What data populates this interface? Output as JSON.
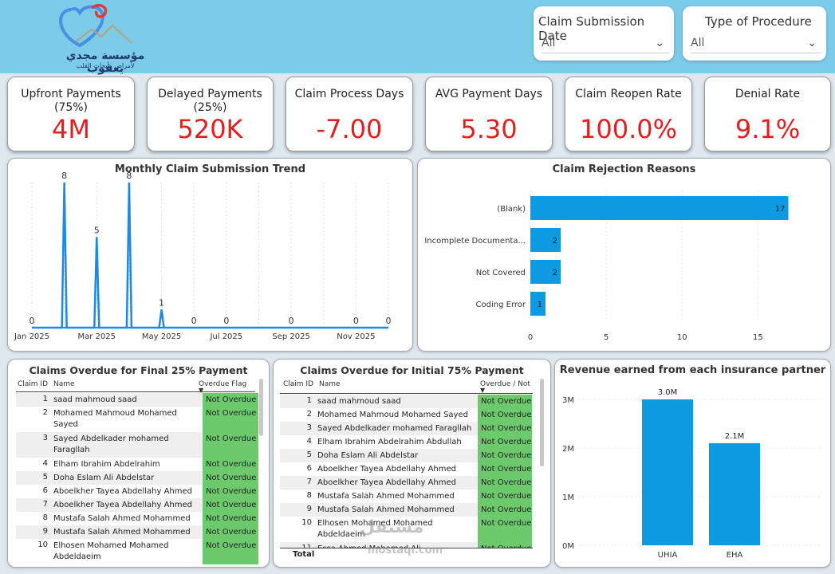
{
  "logo": {
    "line1": "مؤسسة مجدي يعقوب",
    "line2": "لأمراض وأبحاث القلب",
    "icon": "heart-logo-icon"
  },
  "slicers": [
    {
      "title": "Claim Submission Date",
      "value": "All"
    },
    {
      "title": "Type of Procedure",
      "value": "All"
    }
  ],
  "kpis": [
    {
      "title": "Upfront Payments",
      "sub": "(75%)",
      "value": "4M"
    },
    {
      "title": "Delayed Payments",
      "sub": "(25%)",
      "value": "520K"
    },
    {
      "title": "Claim Process Days",
      "sub": "",
      "value": "-7.00"
    },
    {
      "title": "AVG Payment Days",
      "sub": "",
      "value": "5.30"
    },
    {
      "title": "Claim Reopen Rate",
      "sub": "",
      "value": "100.0%"
    },
    {
      "title": "Denial Rate",
      "sub": "",
      "value": "9.1%"
    }
  ],
  "colors": {
    "accent": "#1e88e5",
    "bar": "#0d9ae0",
    "kpi_value": "#e02020",
    "flag": "#6cc96c",
    "header": "#7ccbe9"
  },
  "chart_data": [
    {
      "type": "line",
      "title": "Monthly Claim Submission Trend",
      "x_ticks": [
        "Jan 2025",
        "Mar 2025",
        "May 2025",
        "Jul 2025",
        "Sep 2025",
        "Nov 2025"
      ],
      "points": [
        {
          "x": "Jan 2025",
          "y": 0,
          "label": "0"
        },
        {
          "x": "Feb 2025",
          "y": 8,
          "label": "8"
        },
        {
          "x": "Mar 2025",
          "y": 5,
          "label": "5"
        },
        {
          "x": "Apr 2025",
          "y": 8,
          "label": "8"
        },
        {
          "x": "May 2025",
          "y": 1,
          "label": "1"
        },
        {
          "x": "Jun 2025",
          "y": 0,
          "label": "0"
        },
        {
          "x": "Jul 2025",
          "y": 0,
          "label": "0"
        },
        {
          "x": "Sep 2025",
          "y": 0,
          "label": "0"
        },
        {
          "x": "Nov 2025",
          "y": 0,
          "label": "0"
        },
        {
          "x": "Dec 2025",
          "y": 0,
          "label": "0"
        }
      ],
      "ylim": [
        0,
        8
      ]
    },
    {
      "type": "bar",
      "orientation": "horizontal",
      "title": "Claim Rejection Reasons",
      "categories": [
        "(Blank)",
        "Incomplete Documenta...",
        "Not Covered",
        "Coding Error"
      ],
      "values": [
        17,
        2,
        2,
        1
      ],
      "x_ticks": [
        0,
        5,
        10,
        15
      ],
      "xlim": [
        0,
        17.5
      ]
    },
    {
      "type": "bar",
      "title": "Revenue earned from each insurance partner",
      "categories": [
        "UHIA",
        "EHA"
      ],
      "values": [
        3000000,
        2100000
      ],
      "labels": [
        "3.0M",
        "2.1M"
      ],
      "y_ticks": [
        "0M",
        "1M",
        "2M",
        "3M"
      ],
      "ylim": [
        0,
        3000000
      ]
    }
  ],
  "table1": {
    "title": "Claims Overdue for Final 25% Payment",
    "headers": [
      "Claim ID",
      "Name",
      "Overdue Flag"
    ],
    "rows": [
      {
        "id": "1",
        "name": "saad mahmoud saad",
        "flag": "Not Overdue"
      },
      {
        "id": "2",
        "name": "Mohamed Mahmoud Mohamed Sayed",
        "flag": "Not Overdue"
      },
      {
        "id": "3",
        "name": "Sayed Abdelkader mohamed Faragllah",
        "flag": "Not Overdue"
      },
      {
        "id": "4",
        "name": "Elham Ibrahim Abdelrahim Abdullah",
        "flag": "Not Overdue"
      },
      {
        "id": "5",
        "name": "Doha Eslam Ali Abdelstar",
        "flag": "Not Overdue"
      },
      {
        "id": "6",
        "name": "Aboelkher Tayea Abdellahy Ahmed",
        "flag": "Not Overdue"
      },
      {
        "id": "7",
        "name": "Aboelkher Tayea Abdellahy Ahmed",
        "flag": "Not Overdue"
      },
      {
        "id": "8",
        "name": "Mustafa Salah Ahmed Mohammed",
        "flag": "Not Overdue"
      },
      {
        "id": "9",
        "name": "Mustafa Salah Ahmed Mohammed",
        "flag": "Not Overdue"
      },
      {
        "id": "10",
        "name": "Elhosen Mohamed Mohamed Abdeldaeim",
        "flag": "Not Overdue"
      }
    ]
  },
  "table2": {
    "title": "Claims Overdue for Initial 75% Payment",
    "headers": [
      "Claim ID",
      "Name",
      "Overdue / Not"
    ],
    "rows": [
      {
        "id": "1",
        "name": "saad mahmoud saad",
        "flag": "Not Overdue"
      },
      {
        "id": "2",
        "name": "Mohamed Mahmoud Mohamed Sayed",
        "flag": "Not Overdue"
      },
      {
        "id": "3",
        "name": "Sayed Abdelkader mohamed Faragllah",
        "flag": "Not Overdue"
      },
      {
        "id": "4",
        "name": "Elham Ibrahim Abdelrahim Abdullah",
        "flag": "Not Overdue"
      },
      {
        "id": "5",
        "name": "Doha Eslam Ali Abdelstar",
        "flag": "Not Overdue"
      },
      {
        "id": "6",
        "name": "Aboelkher Tayea Abdellahy Ahmed",
        "flag": "Not Overdue"
      },
      {
        "id": "7",
        "name": "Aboelkher Tayea Abdellahy Ahmed",
        "flag": "Not Overdue"
      },
      {
        "id": "8",
        "name": "Mustafa Salah Ahmed Mohammed",
        "flag": "Not Overdue"
      },
      {
        "id": "9",
        "name": "Mustafa Salah Ahmed Mohammed",
        "flag": "Not Overdue"
      },
      {
        "id": "10",
        "name": "Elhosen Mohamed Mohamed Abdeldaeim",
        "flag": "Not Overdue"
      },
      {
        "id": "11",
        "name": "Essa Ahmed Mohamed Ali",
        "flag": "Not Overdue"
      }
    ],
    "total_label": "Total"
  },
  "watermark": {
    "line1": "مستقل",
    "line2": "mostaql.com"
  }
}
